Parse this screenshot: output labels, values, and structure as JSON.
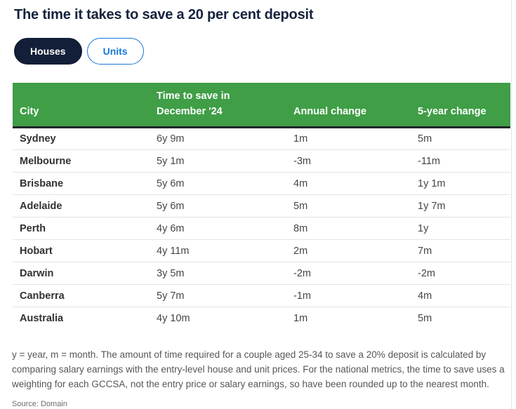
{
  "page": {
    "title": "The time it takes to save a 20 per cent deposit"
  },
  "tabs": [
    {
      "label": "Houses",
      "active": true
    },
    {
      "label": "Units",
      "active": false
    }
  ],
  "chart_data": {
    "type": "table",
    "title": "The time it takes to save a 20 per cent deposit",
    "columns": [
      "City",
      "Time to save in\nDecember '24",
      "Annual change",
      "5-year change"
    ],
    "rows": [
      [
        "Sydney",
        "6y 9m",
        "1m",
        "5m"
      ],
      [
        "Melbourne",
        "5y 1m",
        "-3m",
        "-11m"
      ],
      [
        "Brisbane",
        "5y 6m",
        "4m",
        "1y 1m"
      ],
      [
        "Adelaide",
        "5y 6m",
        "5m",
        "1y 7m"
      ],
      [
        "Perth",
        "4y 6m",
        "8m",
        "1y"
      ],
      [
        "Hobart",
        "4y 11m",
        "2m",
        "7m"
      ],
      [
        "Darwin",
        "3y 5m",
        "-2m",
        "-2m"
      ],
      [
        "Canberra",
        "5y 7m",
        "-1m",
        "4m"
      ],
      [
        "Australia",
        "4y 10m",
        "1m",
        "5m"
      ]
    ]
  },
  "footnote": "y = year, m = month. The amount of time required for a couple aged 25-34 to save a 20% deposit is calculated by comparing salary earnings with the entry-level house and unit prices. For the national metrics, the time to save uses a weighting for each GCCSA, not the entry price or salary earnings, so have been rounded up to the nearest month.",
  "source_label": "Source: Domain",
  "colors": {
    "header_green": "#3f9e46",
    "active_tab_navy": "#131f38",
    "inactive_tab_blue": "#1878d8",
    "title_navy": "#15233d",
    "header_border": "#20252b",
    "row_divider": "#e4e4e4"
  }
}
